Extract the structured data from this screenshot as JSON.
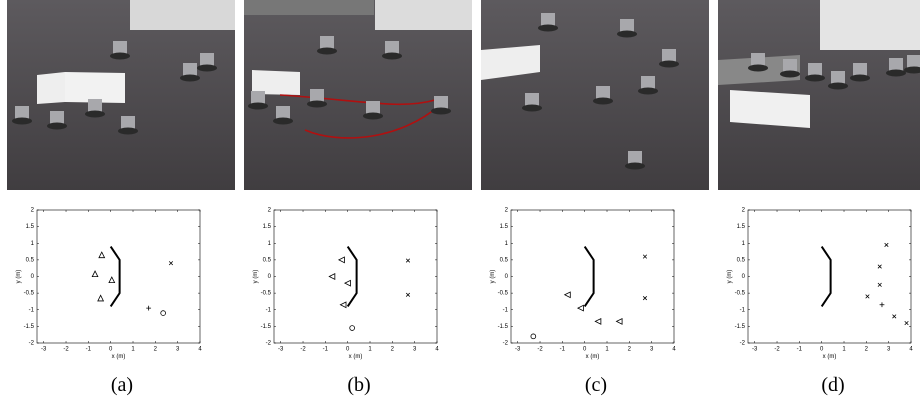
{
  "chart_data": [
    {
      "type": "scatter",
      "caption": "(a)",
      "xlabel": "x (m)",
      "ylabel": "y (m)",
      "xlim": [
        -3.3,
        4
      ],
      "ylim": [
        -2,
        2
      ],
      "xticks": [
        -3,
        -2,
        -1,
        0,
        1,
        2,
        3,
        4
      ],
      "yticks": [
        -2,
        -1.5,
        -1,
        -0.5,
        0,
        0.5,
        1,
        1.5,
        2
      ],
      "series": [
        {
          "marker": "line",
          "color": "#000000",
          "x": [
            0,
            0.4,
            0.4,
            0
          ],
          "values": [
            0.9,
            0.5,
            -0.5,
            -0.9
          ]
        },
        {
          "marker": "triangle-up",
          "color": "#000000",
          "x": [
            -0.4,
            -0.7,
            0.05,
            -0.45
          ],
          "values": [
            0.65,
            0.08,
            -0.1,
            -0.65
          ]
        },
        {
          "marker": "x",
          "color": "#000000",
          "x": [
            2.7
          ],
          "values": [
            0.4
          ]
        },
        {
          "marker": "plus",
          "color": "#000000",
          "x": [
            1.7
          ],
          "values": [
            -0.95
          ]
        },
        {
          "marker": "circle",
          "color": "#000000",
          "x": [
            2.35
          ],
          "values": [
            -1.1
          ]
        }
      ]
    },
    {
      "type": "scatter",
      "caption": "(b)",
      "xlabel": "x (m)",
      "ylabel": "y (m)",
      "xlim": [
        -3.3,
        4
      ],
      "ylim": [
        -2,
        2
      ],
      "xticks": [
        -3,
        -2,
        -1,
        0,
        1,
        2,
        3,
        4
      ],
      "yticks": [
        -2,
        -1.5,
        -1,
        -0.5,
        0,
        0.5,
        1,
        1.5,
        2
      ],
      "series": [
        {
          "marker": "line",
          "color": "#000000",
          "x": [
            0,
            0.4,
            0.4,
            0
          ],
          "values": [
            0.9,
            0.5,
            -0.5,
            -0.9
          ]
        },
        {
          "marker": "triangle-left",
          "color": "#000000",
          "x": [
            -0.27,
            -0.7,
            0,
            -0.2
          ],
          "values": [
            0.5,
            0,
            -0.2,
            -0.85
          ]
        },
        {
          "marker": "x",
          "color": "#000000",
          "x": [
            2.7,
            2.7
          ],
          "values": [
            0.48,
            -0.55
          ]
        },
        {
          "marker": "circle",
          "color": "#000000",
          "x": [
            0.2
          ],
          "values": [
            -1.55
          ]
        }
      ]
    },
    {
      "type": "scatter",
      "caption": "(c)",
      "xlabel": "x (m)",
      "ylabel": "y (m)",
      "xlim": [
        -3.3,
        4
      ],
      "ylim": [
        -2,
        2
      ],
      "xticks": [
        -3,
        -2,
        -1,
        0,
        1,
        2,
        3,
        4
      ],
      "yticks": [
        -2,
        -1.5,
        -1,
        -0.5,
        0,
        0.5,
        1,
        1.5,
        2
      ],
      "series": [
        {
          "marker": "line",
          "color": "#000000",
          "x": [
            0,
            0.4,
            0.4,
            0
          ],
          "values": [
            0.9,
            0.5,
            -0.5,
            -0.9
          ]
        },
        {
          "marker": "triangle-left",
          "color": "#000000",
          "x": [
            -0.77,
            -0.18,
            0.6,
            1.55
          ],
          "values": [
            -0.55,
            -0.95,
            -1.35,
            -1.35
          ]
        },
        {
          "marker": "x",
          "color": "#000000",
          "x": [
            2.7,
            2.7
          ],
          "values": [
            0.6,
            -0.65
          ]
        },
        {
          "marker": "circle",
          "color": "#000000",
          "x": [
            -2.3
          ],
          "values": [
            -1.8
          ]
        }
      ]
    },
    {
      "type": "scatter",
      "caption": "(d)",
      "xlabel": "x (m)",
      "ylabel": "y (m)",
      "xlim": [
        -3.3,
        4
      ],
      "ylim": [
        -2,
        2
      ],
      "xticks": [
        -3,
        -2,
        -1,
        0,
        1,
        2,
        3,
        4
      ],
      "yticks": [
        -2,
        -1.5,
        -1,
        -0.5,
        0,
        0.5,
        1,
        1.5,
        2
      ],
      "series": [
        {
          "marker": "line",
          "color": "#000000",
          "x": [
            0,
            0.4,
            0.4,
            0
          ],
          "values": [
            0.9,
            0.5,
            -0.5,
            -0.9
          ]
        },
        {
          "marker": "x",
          "color": "#000000",
          "x": [
            2.9,
            2.6,
            2.6,
            2.05,
            3.25,
            3.8
          ],
          "values": [
            0.95,
            0.3,
            -0.25,
            -0.6,
            -1.2,
            -1.4
          ]
        },
        {
          "marker": "plus",
          "color": "#000000",
          "x": [
            2.7
          ],
          "values": [
            -0.85
          ]
        }
      ]
    }
  ]
}
